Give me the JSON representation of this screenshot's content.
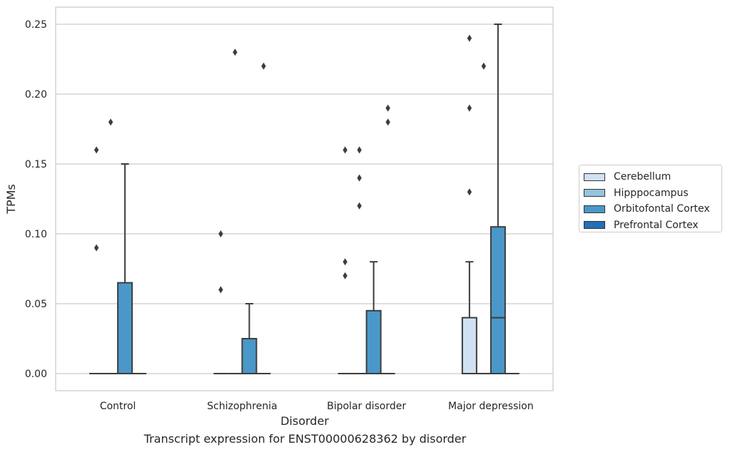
{
  "caption": "Transcript expression for ENST00000628362 by disorder",
  "chart_data": {
    "type": "box",
    "xlabel": "Disorder",
    "ylabel": "TPMs",
    "ylim": [
      -0.012,
      0.262
    ],
    "yticks": [
      "0.00",
      "0.05",
      "0.10",
      "0.15",
      "0.20",
      "0.25"
    ],
    "categories": [
      "Control",
      "Schizophrenia",
      "Bipolar disorder",
      "Major depression"
    ],
    "grid": "horizontal",
    "legend": "right",
    "series": [
      {
        "name": "Cerebellum",
        "color": "#d0e1f2"
      },
      {
        "name": "Hipppocampus",
        "color": "#94c4df"
      },
      {
        "name": "Orbitofontal Cortex",
        "color": "#4a98c9"
      },
      {
        "name": "Prefrontal Cortex",
        "color": "#2171b5"
      }
    ],
    "boxes": [
      {
        "category": "Control",
        "series": "Cerebellum",
        "q1": 0,
        "median": 0,
        "q3": 0,
        "whisker_low": 0,
        "whisker_high": 0,
        "outliers": [
          0.09,
          0.16
        ]
      },
      {
        "category": "Control",
        "series": "Hipppocampus",
        "q1": 0,
        "median": 0,
        "q3": 0,
        "whisker_low": 0,
        "whisker_high": 0,
        "outliers": [
          0.18
        ]
      },
      {
        "category": "Control",
        "series": "Orbitofontal Cortex",
        "q1": 0,
        "median": 0,
        "q3": 0.065,
        "whisker_low": 0,
        "whisker_high": 0.15,
        "outliers": []
      },
      {
        "category": "Control",
        "series": "Prefrontal Cortex",
        "q1": 0,
        "median": 0,
        "q3": 0,
        "whisker_low": 0,
        "whisker_high": 0,
        "outliers": []
      },
      {
        "category": "Schizophrenia",
        "series": "Cerebellum",
        "q1": 0,
        "median": 0,
        "q3": 0,
        "whisker_low": 0,
        "whisker_high": 0,
        "outliers": [
          0.06,
          0.1
        ]
      },
      {
        "category": "Schizophrenia",
        "series": "Hipppocampus",
        "q1": 0,
        "median": 0,
        "q3": 0,
        "whisker_low": 0,
        "whisker_high": 0,
        "outliers": [
          0.23
        ]
      },
      {
        "category": "Schizophrenia",
        "series": "Orbitofontal Cortex",
        "q1": 0,
        "median": 0,
        "q3": 0.025,
        "whisker_low": 0,
        "whisker_high": 0.05,
        "outliers": []
      },
      {
        "category": "Schizophrenia",
        "series": "Prefrontal Cortex",
        "q1": 0,
        "median": 0,
        "q3": 0,
        "whisker_low": 0,
        "whisker_high": 0,
        "outliers": [
          0.22
        ]
      },
      {
        "category": "Bipolar disorder",
        "series": "Cerebellum",
        "q1": 0,
        "median": 0,
        "q3": 0,
        "whisker_low": 0,
        "whisker_high": 0,
        "outliers": [
          0.07,
          0.08,
          0.16
        ]
      },
      {
        "category": "Bipolar disorder",
        "series": "Hipppocampus",
        "q1": 0,
        "median": 0,
        "q3": 0,
        "whisker_low": 0,
        "whisker_high": 0,
        "outliers": [
          0.12,
          0.14,
          0.16
        ]
      },
      {
        "category": "Bipolar disorder",
        "series": "Orbitofontal Cortex",
        "q1": 0,
        "median": 0,
        "q3": 0.045,
        "whisker_low": 0,
        "whisker_high": 0.08,
        "outliers": []
      },
      {
        "category": "Bipolar disorder",
        "series": "Prefrontal Cortex",
        "q1": 0,
        "median": 0,
        "q3": 0,
        "whisker_low": 0,
        "whisker_high": 0,
        "outliers": [
          0.18,
          0.19
        ]
      },
      {
        "category": "Major depression",
        "series": "Cerebellum",
        "q1": 0,
        "median": 0,
        "q3": 0.04,
        "whisker_low": 0,
        "whisker_high": 0.08,
        "outliers": [
          0.13,
          0.19,
          0.24
        ]
      },
      {
        "category": "Major depression",
        "series": "Hipppocampus",
        "q1": 0,
        "median": 0,
        "q3": 0,
        "whisker_low": 0,
        "whisker_high": 0,
        "outliers": [
          0.22
        ]
      },
      {
        "category": "Major depression",
        "series": "Orbitofontal Cortex",
        "q1": 0,
        "median": 0.04,
        "q3": 0.105,
        "whisker_low": 0,
        "whisker_high": 0.25,
        "outliers": []
      },
      {
        "category": "Major depression",
        "series": "Prefrontal Cortex",
        "q1": 0,
        "median": 0,
        "q3": 0,
        "whisker_low": 0,
        "whisker_high": 0,
        "outliers": []
      }
    ]
  }
}
